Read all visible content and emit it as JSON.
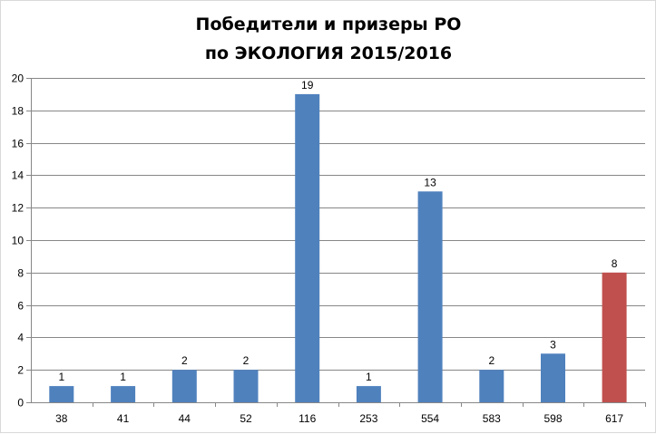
{
  "chart_data": {
    "type": "bar",
    "title_lines": [
      "Победители и призеры РО",
      "по ЭКОЛОГИЯ 2015/2016"
    ],
    "categories": [
      "38",
      "41",
      "44",
      "52",
      "116",
      "253",
      "554",
      "583",
      "598",
      "617"
    ],
    "values": [
      1,
      1,
      2,
      2,
      19,
      1,
      13,
      2,
      3,
      8
    ],
    "ylim": [
      0,
      20
    ],
    "yticks": [
      "0",
      "2",
      "4",
      "6",
      "8",
      "10",
      "12",
      "14",
      "16",
      "18",
      "20"
    ],
    "grid": true,
    "colors": {
      "default_bar": "#4f81bd",
      "highlight_bar": "#c0504d",
      "gridline": "#878787",
      "axis": "#878787"
    },
    "highlight_category": "617"
  }
}
